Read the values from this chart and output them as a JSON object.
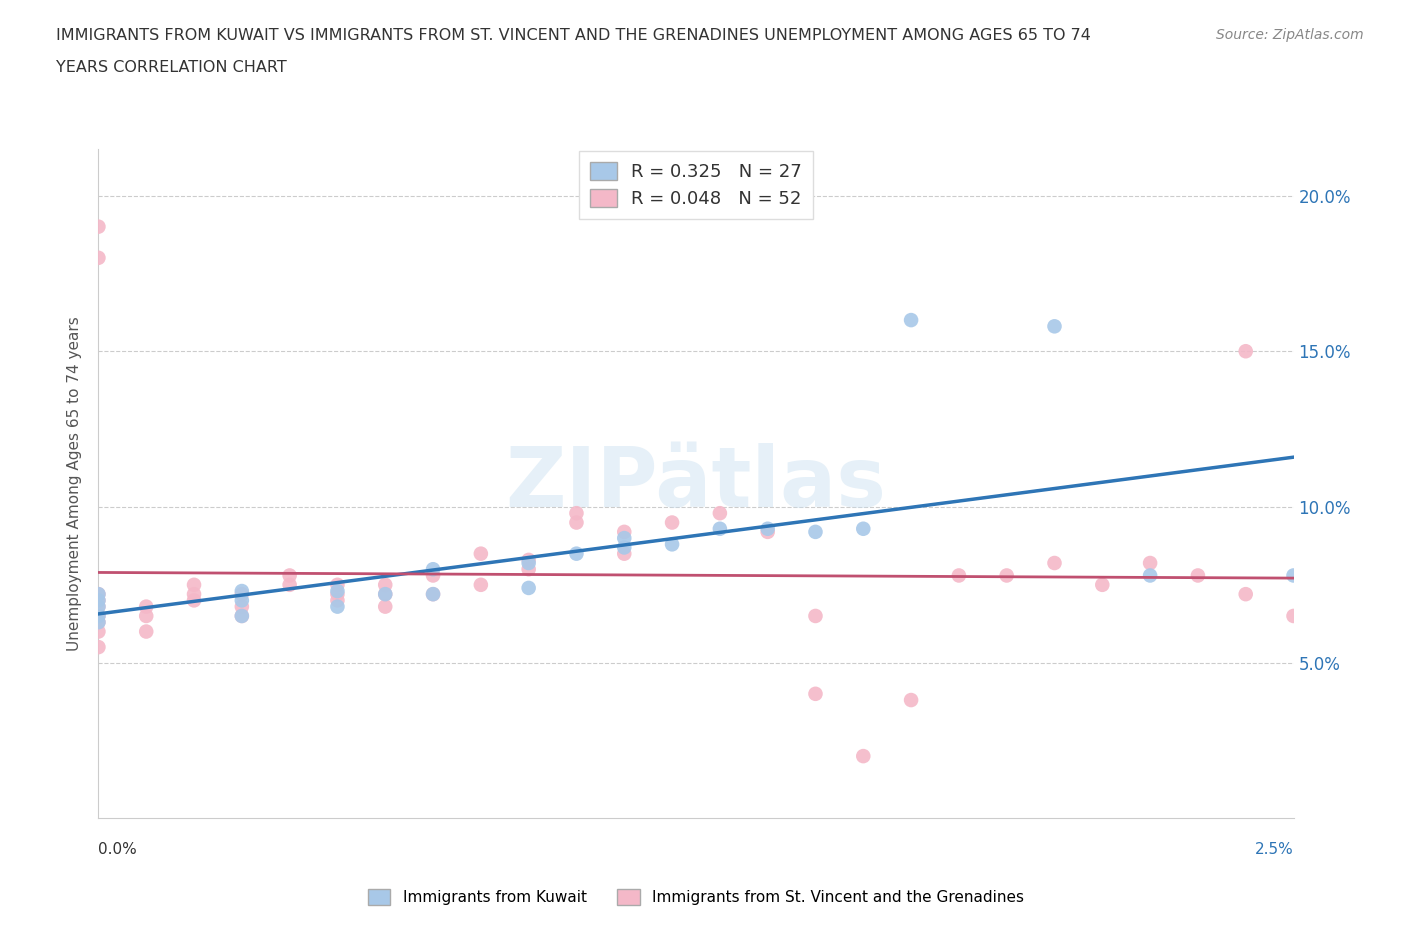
{
  "title_line1": "IMMIGRANTS FROM KUWAIT VS IMMIGRANTS FROM ST. VINCENT AND THE GRENADINES UNEMPLOYMENT AMONG AGES 65 TO 74",
  "title_line2": "YEARS CORRELATION CHART",
  "source": "Source: ZipAtlas.com",
  "ylabel": "Unemployment Among Ages 65 to 74 years",
  "watermark": "ZIPAtlas",
  "kuwait_color": "#a8c8e8",
  "kuwait_color_dark": "#5b9bd5",
  "kuwait_line_color": "#2e75b6",
  "stvincent_color": "#f4b8c8",
  "stvincent_color_dark": "#e87090",
  "stvincent_line_color": "#c05070",
  "dashed_line_color": "#7ab0d8",
  "kuwait_R": "0.325",
  "kuwait_N": "27",
  "stvincent_R": "0.048",
  "stvincent_N": "52",
  "y_ticks": [
    0.05,
    0.1,
    0.15,
    0.2
  ],
  "y_tick_labels": [
    "5.0%",
    "10.0%",
    "15.0%",
    "20.0%"
  ],
  "xlim": [
    0.0,
    0.025
  ],
  "ylim": [
    0.0,
    0.215
  ],
  "kuwait_x": [
    0.0,
    0.0,
    0.0,
    0.0,
    0.0,
    0.003,
    0.003,
    0.003,
    0.005,
    0.005,
    0.006,
    0.007,
    0.007,
    0.009,
    0.009,
    0.01,
    0.011,
    0.011,
    0.012,
    0.013,
    0.014,
    0.015,
    0.016,
    0.017,
    0.02,
    0.022,
    0.025
  ],
  "kuwait_y": [
    0.063,
    0.065,
    0.068,
    0.07,
    0.072,
    0.065,
    0.07,
    0.073,
    0.068,
    0.073,
    0.072,
    0.072,
    0.08,
    0.074,
    0.082,
    0.085,
    0.087,
    0.09,
    0.088,
    0.093,
    0.093,
    0.092,
    0.093,
    0.16,
    0.158,
    0.078,
    0.078
  ],
  "stvincent_x": [
    0.0,
    0.0,
    0.0,
    0.0,
    0.0,
    0.0,
    0.0,
    0.0,
    0.0,
    0.001,
    0.001,
    0.001,
    0.002,
    0.002,
    0.002,
    0.003,
    0.003,
    0.003,
    0.004,
    0.004,
    0.005,
    0.005,
    0.005,
    0.006,
    0.006,
    0.006,
    0.007,
    0.007,
    0.008,
    0.008,
    0.009,
    0.009,
    0.01,
    0.01,
    0.011,
    0.011,
    0.012,
    0.013,
    0.014,
    0.015,
    0.015,
    0.016,
    0.017,
    0.018,
    0.019,
    0.02,
    0.021,
    0.022,
    0.023,
    0.024,
    0.024,
    0.025
  ],
  "stvincent_y": [
    0.055,
    0.06,
    0.063,
    0.065,
    0.068,
    0.07,
    0.072,
    0.18,
    0.19,
    0.06,
    0.065,
    0.068,
    0.07,
    0.072,
    0.075,
    0.065,
    0.068,
    0.072,
    0.075,
    0.078,
    0.07,
    0.072,
    0.075,
    0.068,
    0.072,
    0.075,
    0.072,
    0.078,
    0.075,
    0.085,
    0.08,
    0.083,
    0.095,
    0.098,
    0.085,
    0.092,
    0.095,
    0.098,
    0.092,
    0.065,
    0.04,
    0.02,
    0.038,
    0.078,
    0.078,
    0.082,
    0.075,
    0.082,
    0.078,
    0.15,
    0.072,
    0.065
  ]
}
